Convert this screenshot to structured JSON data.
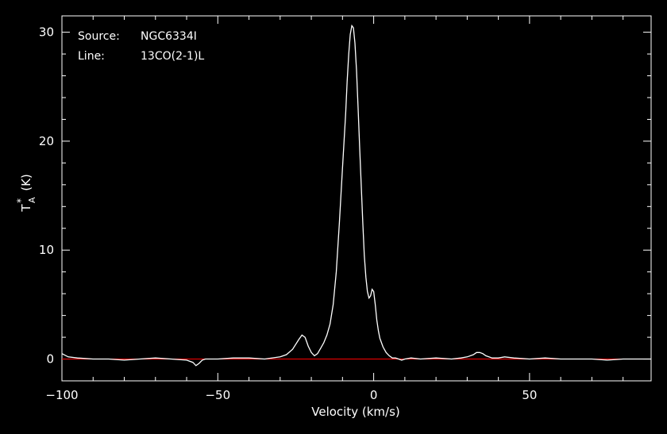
{
  "chart_data": {
    "type": "line",
    "title": "",
    "info": {
      "source_label": "Source:",
      "source_value": "NGC6334I",
      "line_label": "Line:",
      "line_value": "13CO(2-1)L"
    },
    "xlabel": "Velocity (km/s)",
    "ylabel": "T",
    "ylabel_sub": "A",
    "ylabel_sup": "*",
    "ylabel_unit": "(K)",
    "xlim": [
      -100,
      89
    ],
    "ylim": [
      -2,
      31.5
    ],
    "xticks": [
      -100,
      -50,
      0,
      50
    ],
    "xtick_labels": [
      "−100",
      "−50",
      "0",
      "50"
    ],
    "yticks": [
      0,
      10,
      20,
      30
    ],
    "ytick_labels": [
      "0",
      "10",
      "20",
      "30"
    ],
    "grid": false,
    "colors": {
      "background": "#000000",
      "axes": "#ffffff",
      "spectrum": "#ffffff",
      "baseline": "#ff0000"
    },
    "baseline_value": 0,
    "series": [
      {
        "x": [
          -100,
          -98,
          -95,
          -90,
          -85,
          -80,
          -75,
          -70,
          -65,
          -60,
          -58,
          -57,
          -56,
          -55,
          -54,
          -52,
          -50,
          -45,
          -40,
          -35,
          -30,
          -28,
          -26,
          -24,
          -23,
          -22,
          -21.5,
          -21,
          -20,
          -19,
          -18,
          -17,
          -16,
          -15,
          -14,
          -13,
          -12,
          -11,
          -10,
          -9,
          -8.5,
          -8,
          -7.5,
          -7,
          -6.5,
          -6,
          -5.5,
          -5,
          -4.5,
          -4,
          -3.5,
          -3,
          -2.5,
          -2,
          -1.5,
          -1,
          -0.5,
          0,
          0.5,
          1,
          1.5,
          2,
          3,
          4,
          5,
          6,
          7,
          8,
          9,
          10,
          12,
          15,
          20,
          25,
          28,
          30,
          32,
          33,
          34,
          35,
          36,
          38,
          40,
          42,
          45,
          50,
          55,
          60,
          65,
          70,
          75,
          80,
          85,
          89
        ],
        "y": [
          0.5,
          0.2,
          0.1,
          0.0,
          0.0,
          -0.1,
          0.0,
          0.1,
          0.0,
          -0.1,
          -0.3,
          -0.6,
          -0.4,
          -0.1,
          0.0,
          0.0,
          0.0,
          0.1,
          0.1,
          0.0,
          0.2,
          0.4,
          0.9,
          1.8,
          2.2,
          2.0,
          1.6,
          1.2,
          0.6,
          0.3,
          0.5,
          1.0,
          1.5,
          2.2,
          3.2,
          5.0,
          8.0,
          12.5,
          17.5,
          22.5,
          25.5,
          28.0,
          29.8,
          30.6,
          30.4,
          29.0,
          26.5,
          23.0,
          19.5,
          16.0,
          12.5,
          9.5,
          7.5,
          6.2,
          5.6,
          5.8,
          6.4,
          6.2,
          5.0,
          3.6,
          2.6,
          1.9,
          1.1,
          0.6,
          0.3,
          0.1,
          0.1,
          0.0,
          -0.1,
          0.0,
          0.1,
          0.0,
          0.1,
          0.0,
          0.1,
          0.2,
          0.4,
          0.6,
          0.6,
          0.5,
          0.3,
          0.1,
          0.1,
          0.2,
          0.1,
          0.0,
          0.1,
          0.0,
          0.0,
          0.0,
          -0.1,
          0.0,
          0.0,
          0.0
        ]
      }
    ]
  }
}
